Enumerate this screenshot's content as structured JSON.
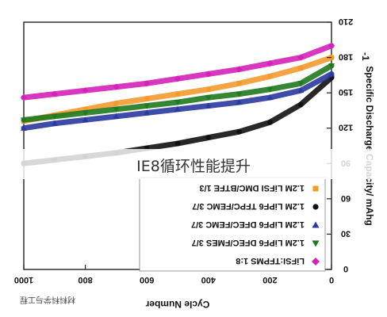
{
  "caption": "IE8循环性能提升",
  "watermark": "材料科学与工程",
  "chart_data": {
    "type": "scatter",
    "orientation": "mirrored",
    "xlabel": "Cycle Number",
    "ylabel": "Specific Discharge Capacity/ mAhg",
    "ylabel_sup": "-1",
    "xlim": [
      0,
      1000
    ],
    "ylim": [
      0,
      210
    ],
    "x_ticks": [
      0,
      200,
      400,
      600,
      800,
      1000
    ],
    "y_ticks": [
      0,
      30,
      60,
      90,
      120,
      150,
      180,
      210
    ],
    "y_axis_side": "right",
    "x_direction": "reversed",
    "grid": false,
    "legend_position": "lower-left",
    "series": [
      {
        "name": "1.2M LiFSI DMC/BTFE 1/3",
        "color": "#f39a2e",
        "marker": "square",
        "x": [
          0,
          100,
          200,
          300,
          400,
          500,
          600,
          700,
          800,
          900,
          1000
        ],
        "y": [
          180,
          171,
          164,
          158,
          153,
          149,
          145,
          141,
          136,
          131,
          126
        ]
      },
      {
        "name": "1.2M LiPF6 TFPC/FEMC 3/7",
        "color": "#111111",
        "marker": "circle",
        "x": [
          0,
          100,
          200,
          300,
          400,
          500,
          600,
          700,
          800,
          900,
          1000
        ],
        "y": [
          163,
          140,
          125,
          117,
          112,
          107,
          103,
          99,
          96,
          93,
          90
        ]
      },
      {
        "name": "1.2M LiPF6 DFEC/FEMC 3/7",
        "color": "#2a3aa0",
        "marker": "triangle-up",
        "x": [
          0,
          100,
          200,
          300,
          400,
          500,
          600,
          700,
          800,
          900,
          1000
        ],
        "y": [
          166,
          152,
          146,
          142,
          139,
          136,
          133,
          130,
          127,
          124,
          120
        ]
      },
      {
        "name": "1.2M LiPF6 DFEC/FMES 3/7",
        "color": "#1f7a1f",
        "marker": "triangle-down",
        "x": [
          0,
          100,
          200,
          300,
          400,
          500,
          600,
          700,
          800,
          900,
          1000
        ],
        "y": [
          173,
          158,
          153,
          149,
          146,
          142,
          139,
          136,
          133,
          130,
          127
        ]
      },
      {
        "name": "LiFSI:TFPMS 1:8",
        "color": "#d421b9",
        "marker": "diamond",
        "x": [
          0,
          100,
          200,
          300,
          400,
          500,
          600,
          700,
          800,
          900,
          1000
        ],
        "y": [
          190,
          180,
          175,
          170,
          166,
          162,
          158,
          155,
          152,
          149,
          146
        ]
      }
    ]
  }
}
